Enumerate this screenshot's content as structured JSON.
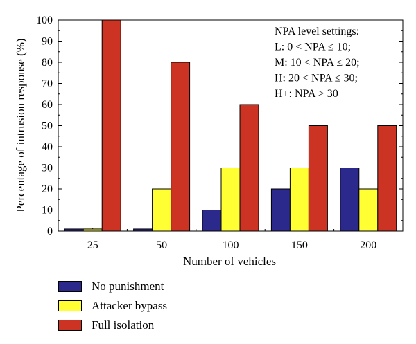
{
  "chart_data": {
    "type": "bar",
    "categories": [
      "25",
      "50",
      "100",
      "150",
      "200"
    ],
    "series": [
      {
        "name": "No punishment",
        "values": [
          1,
          1,
          10,
          20,
          30
        ],
        "color": "#2b2a8c"
      },
      {
        "name": "Attacker bypass",
        "values": [
          1,
          20,
          30,
          30,
          20
        ],
        "color": "#ffff33"
      },
      {
        "name": "Full isolation",
        "values": [
          100,
          80,
          60,
          50,
          50
        ],
        "color": "#cc3322"
      }
    ],
    "xlabel": "Number of vehicles",
    "ylabel": "Percentage of intrusion response (%)",
    "ylim": [
      0,
      100
    ],
    "yticks": [
      0,
      10,
      20,
      30,
      40,
      50,
      60,
      70,
      80,
      90,
      100
    ],
    "legend_position": "below",
    "annotation": [
      "NPA level settings:",
      "L:  0 < NPA ≤ 10;",
      "M:  10 < NPA ≤ 20;",
      "H:  20 < NPA ≤ 30;",
      "H+:  NPA > 30"
    ]
  }
}
